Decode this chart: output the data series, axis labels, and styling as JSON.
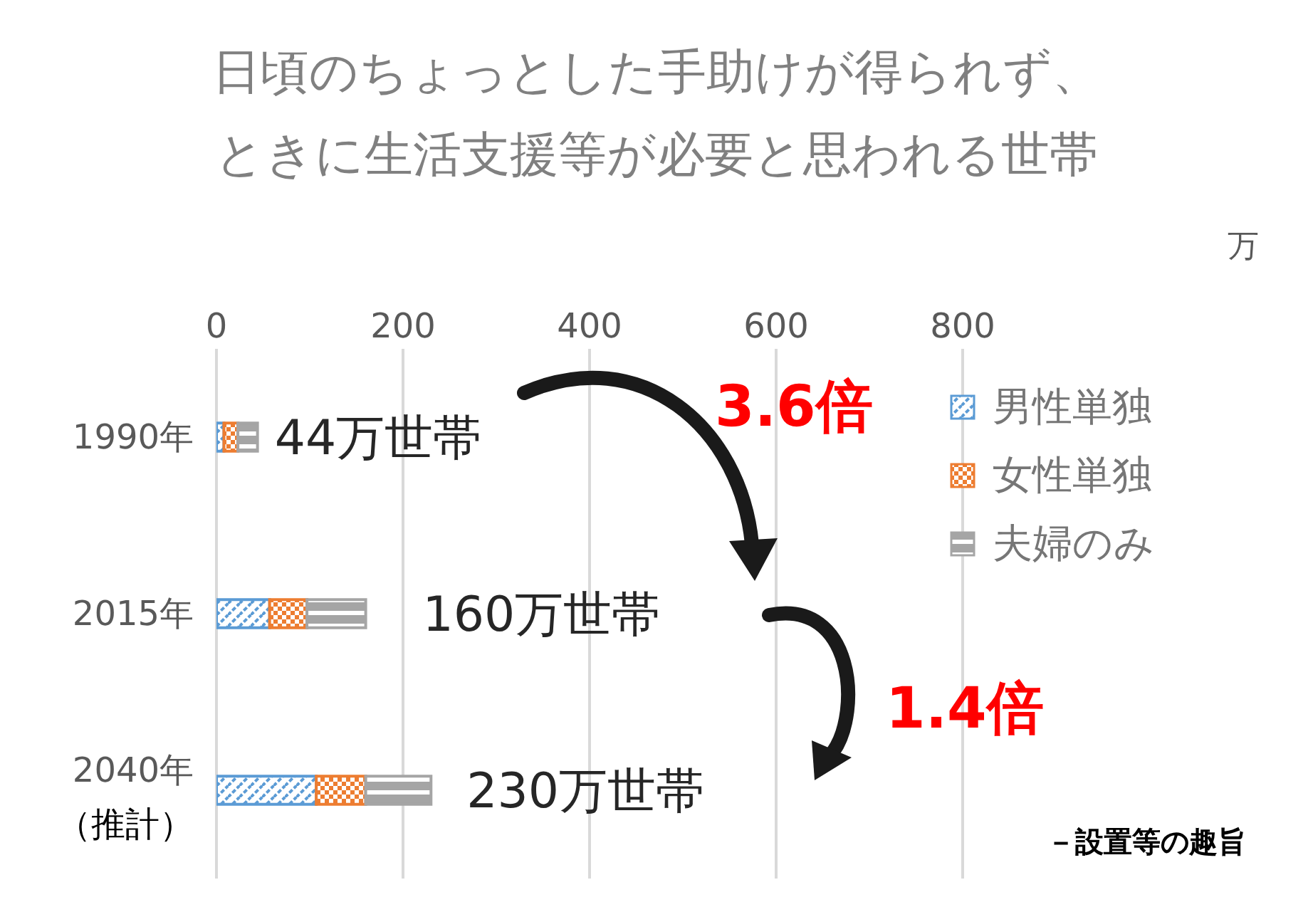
{
  "chart_data": {
    "type": "bar",
    "orientation": "horizontal",
    "stacked": true,
    "title": "日頃のちょっとした手助けが得られず、ときに生活支援等が必要と思われる世帯",
    "categories": [
      "1990年",
      "2015年",
      "2040年（推計）"
    ],
    "series": [
      {
        "name": "男性単独",
        "color": "#5b9bd5",
        "values": [
          8,
          57,
          107
        ]
      },
      {
        "name": "女性単独",
        "color": "#ed7d31",
        "values": [
          15,
          40,
          53
        ]
      },
      {
        "name": "夫婦のみ",
        "color": "#a5a5a5",
        "values": [
          21,
          63,
          70
        ]
      }
    ],
    "totals": [
      "44万世帯",
      "160万世帯",
      "230万世帯"
    ],
    "xlim": [
      0,
      800
    ],
    "xticks": [
      0,
      200,
      400,
      600,
      800
    ],
    "grid": "x",
    "legend": "top right",
    "annotations": [
      "3.6倍",
      "1.4倍",
      "－設置等の趣旨",
      "万"
    ]
  }
}
